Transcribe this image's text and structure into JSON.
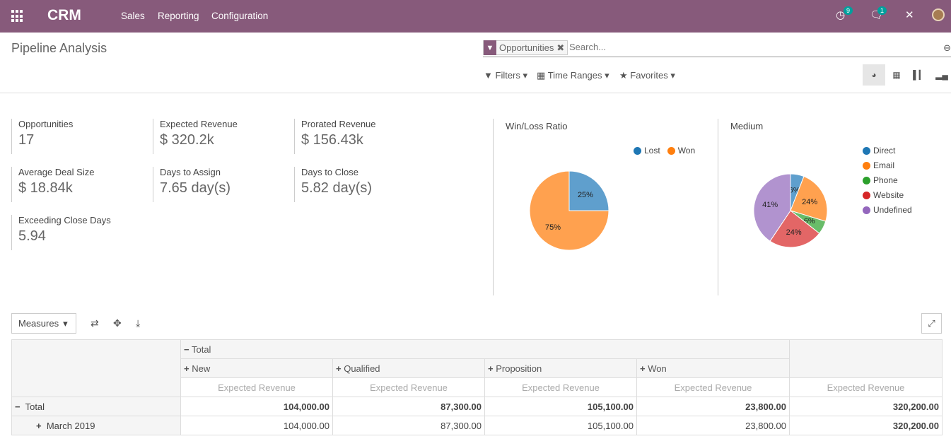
{
  "navbar": {
    "brand": "CRM",
    "menu": [
      "Sales",
      "Reporting",
      "Configuration"
    ],
    "activity_count": "9",
    "message_count": "1"
  },
  "page": {
    "title": "Pipeline Analysis"
  },
  "search": {
    "facet": "Opportunities",
    "placeholder": "Search..."
  },
  "filterbar": {
    "filters": "Filters",
    "time_ranges": "Time Ranges",
    "favorites": "Favorites"
  },
  "kpis": [
    {
      "label": "Opportunities",
      "value": "17"
    },
    {
      "label": "Expected Revenue",
      "value": "$ 320.2k"
    },
    {
      "label": "Prorated Revenue",
      "value": "$ 156.43k"
    },
    {
      "label": "Average Deal Size",
      "value": "$ 18.84k"
    },
    {
      "label": "Days to Assign",
      "value": "7.65 day(s)"
    },
    {
      "label": "Days to Close",
      "value": "5.82 day(s)"
    },
    {
      "label": "Exceeding Close Days",
      "value": "5.94"
    }
  ],
  "chart_data": [
    {
      "type": "pie",
      "title": "Win/Loss Ratio",
      "categories": [
        "Lost",
        "Won"
      ],
      "values": [
        25,
        75
      ],
      "labels": [
        "25%",
        "75%"
      ],
      "colors": [
        "#5f9fcd",
        "#ffa14f"
      ],
      "legend_colors": [
        "#1f77b4",
        "#ff7f0e"
      ],
      "legend": "top-right"
    },
    {
      "type": "pie",
      "title": "Medium",
      "categories": [
        "Direct",
        "Email",
        "Phone",
        "Website",
        "Undefined"
      ],
      "values": [
        6,
        24,
        6,
        24,
        41
      ],
      "labels": [
        "6%",
        "24%",
        "6%",
        "24%",
        "41%"
      ],
      "colors": [
        "#5f9fcd",
        "#ffa14f",
        "#69bc69",
        "#e36666",
        "#b193cf"
      ],
      "legend_colors": [
        "#1f77b4",
        "#ff7f0e",
        "#2ca02c",
        "#d62728",
        "#9467bd"
      ],
      "legend": "right"
    }
  ],
  "pivot": {
    "measures_label": "Measures",
    "total_label": "Total",
    "columns": [
      "New",
      "Qualified",
      "Proposition",
      "Won"
    ],
    "measure": "Expected Revenue",
    "rows": [
      {
        "label": "Total",
        "values": [
          "104,000.00",
          "87,300.00",
          "105,100.00",
          "23,800.00"
        ],
        "total": "320,200.00",
        "bold": true
      },
      {
        "label": "March 2019",
        "values": [
          "104,000.00",
          "87,300.00",
          "105,100.00",
          "23,800.00"
        ],
        "total": "320,200.00",
        "bold": false
      }
    ]
  }
}
